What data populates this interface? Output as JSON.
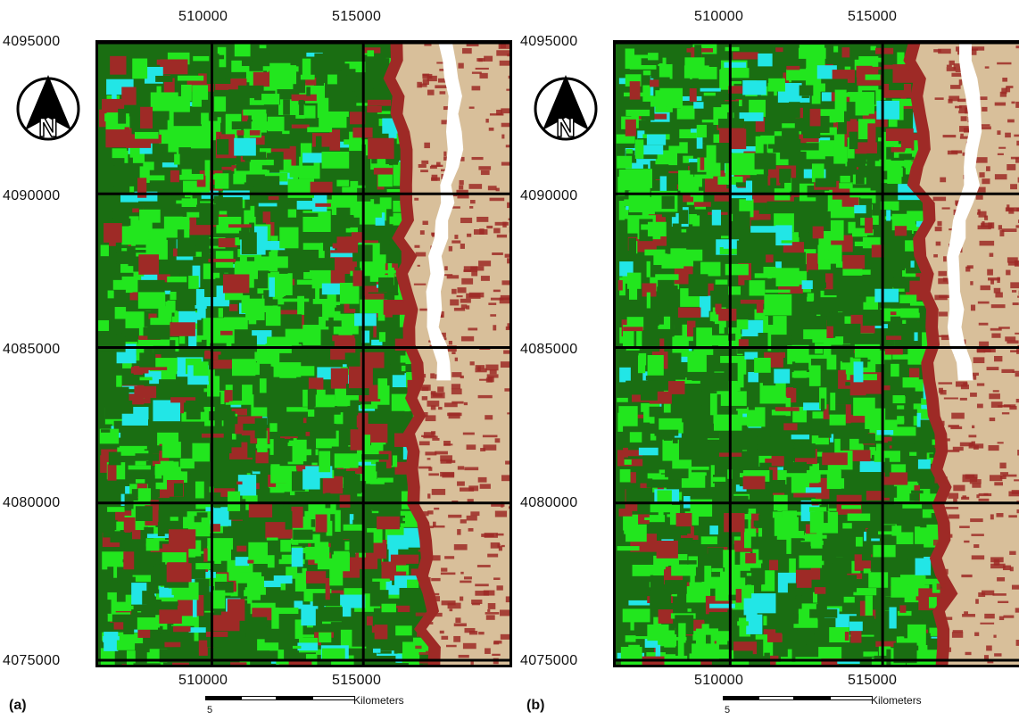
{
  "maps": [
    {
      "id": "a",
      "panel_label": "(a)",
      "x_tick_labels": [
        "510000",
        "515000"
      ],
      "y_tick_labels": [
        "4095000",
        "4090000",
        "4085000",
        "4080000",
        "4075000"
      ],
      "scale_bar": {
        "number": "5",
        "unit": "Kilometers"
      }
    },
    {
      "id": "b",
      "panel_label": "(b)",
      "x_tick_labels": [
        "510000",
        "515000"
      ],
      "y_tick_labels": [
        "4095000",
        "4090000",
        "4085000",
        "4080000",
        "4075000"
      ],
      "scale_bar": {
        "number": "5",
        "unit": "Kilometers"
      }
    }
  ],
  "north_arrow": {
    "icon": "north-arrow-icon",
    "letter": "N"
  },
  "legend_colors": {
    "dark_green": "#1a6e12",
    "bright_green": "#22e61e",
    "cyan": "#22e6e6",
    "dark_red": "#9e2a26",
    "tan": "#d8bf9a",
    "white": "#ffffff"
  }
}
